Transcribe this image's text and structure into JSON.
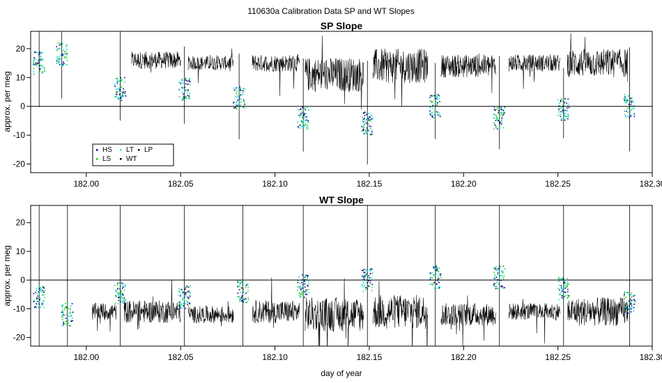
{
  "figure_title": "110630a   Calibration Data SP and WT Slopes",
  "chart_data": [
    {
      "type": "line",
      "title": "SP Slope",
      "ylabel": "approx. per meg",
      "xlabel": "",
      "xlim": [
        181.9705,
        182.3
      ],
      "ylim": [
        -23,
        26
      ],
      "x_ticks": [
        "182.00",
        "182.05",
        "182.10",
        "182.15",
        "182.20",
        "182.25",
        "182.30"
      ],
      "y_ticks": [
        "-20",
        "-10",
        "0",
        "10",
        "20"
      ],
      "x_tick_values": [
        182.0,
        182.05,
        182.1,
        182.15,
        182.2,
        182.25,
        182.3
      ],
      "y_tick_values": [
        -20,
        -10,
        0,
        10,
        20
      ],
      "reference_line_y": 0,
      "legend_position": "bottom-left",
      "legend": [
        {
          "label": "HS",
          "color": "#000080"
        },
        {
          "label": "LS",
          "color": "#00cc00"
        },
        {
          "label": "LT",
          "color": "#00e5ee"
        },
        {
          "label": "WT",
          "color": "#000000"
        },
        {
          "label": "LP",
          "color": "#000000"
        }
      ],
      "series_colors": {
        "WT": "#000000",
        "HS": "#00008b",
        "LS": "#22cc22",
        "LT": "#00dddd"
      },
      "segments": [
        {
          "x0": 182.024,
          "x1": 182.05,
          "level": 16,
          "noise": 3
        },
        {
          "x0": 182.054,
          "x1": 182.078,
          "level": 15,
          "noise": 2.5
        },
        {
          "x0": 182.088,
          "x1": 182.113,
          "level": 15,
          "noise": 3
        },
        {
          "x0": 182.116,
          "x1": 182.147,
          "level": 11,
          "noise": 6
        },
        {
          "x0": 182.152,
          "x1": 182.181,
          "level": 14,
          "noise": 6
        },
        {
          "x0": 182.188,
          "x1": 182.217,
          "level": 14,
          "noise": 4
        },
        {
          "x0": 182.224,
          "x1": 182.251,
          "level": 15,
          "noise": 3
        },
        {
          "x0": 182.255,
          "x1": 182.287,
          "level": 15,
          "noise": 5
        }
      ],
      "calibration_segments": [
        {
          "x": 181.975,
          "level": 15
        },
        {
          "x": 181.987,
          "level": 18
        },
        {
          "x": 182.018,
          "level": 6
        },
        {
          "x": 182.052,
          "level": 6
        },
        {
          "x": 182.081,
          "level": 3
        },
        {
          "x": 182.115,
          "level": -4
        },
        {
          "x": 182.149,
          "level": -6
        },
        {
          "x": 182.185,
          "level": 0
        },
        {
          "x": 182.219,
          "level": -4
        },
        {
          "x": 182.253,
          "level": -1
        },
        {
          "x": 182.288,
          "level": 0
        }
      ]
    },
    {
      "type": "line",
      "title": "WT Slope",
      "ylabel": "approx. per meg",
      "xlabel": "day of year",
      "xlim": [
        181.9705,
        182.3
      ],
      "ylim": [
        -23,
        26
      ],
      "x_ticks": [
        "182.00",
        "182.05",
        "182.10",
        "182.15",
        "182.20",
        "182.25",
        "182.30"
      ],
      "y_ticks": [
        "-20",
        "-10",
        "0",
        "10",
        "20"
      ],
      "x_tick_values": [
        182.0,
        182.05,
        182.1,
        182.15,
        182.2,
        182.25,
        182.3
      ],
      "y_tick_values": [
        -20,
        -10,
        0,
        10,
        20
      ],
      "reference_line_y": 0,
      "series_colors": {
        "WT": "#000000",
        "HS": "#00008b",
        "LS": "#22cc22",
        "LT": "#00dddd"
      },
      "segments": [
        {
          "x0": 182.003,
          "x1": 182.016,
          "level": -11,
          "noise": 3
        },
        {
          "x0": 182.02,
          "x1": 182.05,
          "level": -11,
          "noise": 4
        },
        {
          "x0": 182.054,
          "x1": 182.078,
          "level": -12,
          "noise": 3
        },
        {
          "x0": 182.088,
          "x1": 182.113,
          "level": -11,
          "noise": 4
        },
        {
          "x0": 182.116,
          "x1": 182.147,
          "level": -12,
          "noise": 6
        },
        {
          "x0": 182.152,
          "x1": 182.181,
          "level": -11,
          "noise": 6
        },
        {
          "x0": 182.188,
          "x1": 182.217,
          "level": -12,
          "noise": 4
        },
        {
          "x0": 182.224,
          "x1": 182.251,
          "level": -11,
          "noise": 3
        },
        {
          "x0": 182.255,
          "x1": 182.287,
          "level": -11,
          "noise": 5
        }
      ],
      "calibration_segments": [
        {
          "x": 181.975,
          "level": -6
        },
        {
          "x": 181.99,
          "level": -12
        },
        {
          "x": 182.018,
          "level": -5
        },
        {
          "x": 182.052,
          "level": -6
        },
        {
          "x": 182.083,
          "level": -4
        },
        {
          "x": 182.115,
          "level": -2
        },
        {
          "x": 182.149,
          "level": 0
        },
        {
          "x": 182.185,
          "level": 1
        },
        {
          "x": 182.219,
          "level": 1
        },
        {
          "x": 182.253,
          "level": -3
        },
        {
          "x": 182.288,
          "level": -8
        }
      ]
    }
  ]
}
